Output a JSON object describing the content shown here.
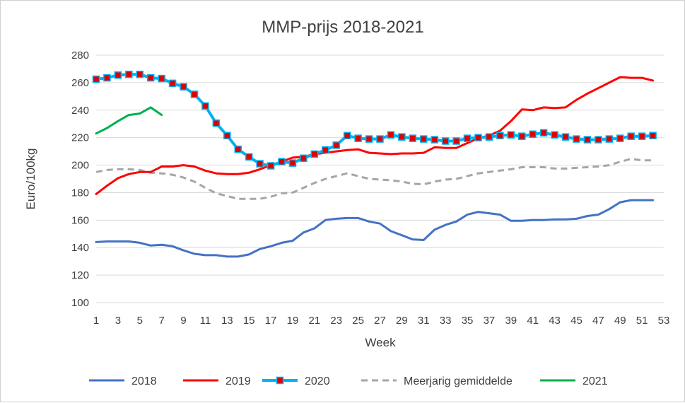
{
  "chart_data": {
    "type": "line",
    "title": "MMP-prijs 2018-2021",
    "xlabel": "Week",
    "ylabel": "Euro/100kg",
    "xlim": [
      1,
      53
    ],
    "ylim": [
      100,
      280
    ],
    "ystep": 20,
    "x_ticks": [
      1,
      3,
      5,
      7,
      9,
      11,
      13,
      15,
      17,
      19,
      21,
      23,
      25,
      27,
      29,
      31,
      33,
      35,
      37,
      39,
      41,
      43,
      45,
      47,
      49,
      51,
      53
    ],
    "y_ticks": [
      100,
      120,
      140,
      160,
      180,
      200,
      220,
      240,
      260,
      280
    ],
    "grid": true,
    "legend_position": "bottom",
    "series": [
      {
        "name": "2018",
        "color": "#4472c4",
        "style": "solid",
        "markers": false,
        "values": [
          144,
          144.5,
          144.5,
          144.5,
          143.5,
          141.5,
          142,
          141,
          138,
          135.5,
          134.5,
          134.5,
          133.5,
          133.5,
          135,
          139,
          141,
          143.5,
          145,
          151,
          154,
          160,
          161,
          161.5,
          161.5,
          159,
          157.5,
          152,
          149,
          146,
          145.5,
          153,
          156.5,
          159,
          164,
          166,
          165,
          164,
          159.5,
          159.5,
          160,
          160,
          160.5,
          160.5,
          161,
          163,
          164,
          168,
          173,
          174.5,
          174.5,
          174.5
        ]
      },
      {
        "name": "2019",
        "color": "#ff0000",
        "style": "solid",
        "markers": false,
        "values": [
          179,
          185,
          190.5,
          193.5,
          195,
          195,
          199,
          199,
          200,
          199,
          196,
          194,
          193.5,
          193.5,
          194.5,
          197,
          200,
          202.5,
          205.5,
          206,
          208,
          209,
          210,
          211,
          211.5,
          209,
          208.5,
          208,
          208.5,
          208.5,
          209,
          213,
          212.5,
          212.5,
          216,
          219.5,
          221.5,
          225,
          232,
          240.5,
          240,
          242,
          241.5,
          242,
          247.5,
          252,
          256,
          260,
          264,
          263.5,
          263.5,
          261.5
        ]
      },
      {
        "name": "2020",
        "color": "#00b0f0",
        "marker_color": "#e00000",
        "style": "solid",
        "markers": true,
        "values": [
          262.5,
          263.5,
          265.5,
          266,
          266,
          263.5,
          263,
          259.5,
          257,
          251.5,
          243,
          230.5,
          221.5,
          211.5,
          206,
          201,
          199.5,
          202.5,
          201.5,
          205,
          208,
          211,
          214.5,
          221.5,
          219.5,
          219,
          219,
          222,
          220.5,
          219.5,
          219,
          218.5,
          217.5,
          217.5,
          219.5,
          220,
          220.5,
          221.5,
          222,
          221,
          222.5,
          223.5,
          222,
          220.5,
          219,
          218.5,
          218.5,
          219,
          219.5,
          221,
          221,
          221.5
        ]
      },
      {
        "name": "Meerjarig gemiddelde",
        "color": "#a6a6a6",
        "style": "dashed",
        "markers": false,
        "values": [
          195,
          196.5,
          197,
          197,
          196.5,
          194.5,
          194,
          193,
          191,
          188,
          183.5,
          179.5,
          177.5,
          175.5,
          175.5,
          175.5,
          177,
          179.5,
          180,
          183.5,
          187,
          190,
          192,
          194,
          192,
          190,
          189.5,
          189,
          188,
          186.5,
          186,
          188,
          189.5,
          190,
          192,
          194,
          195,
          196,
          197,
          198.5,
          198.5,
          198.5,
          197.5,
          197.5,
          198,
          198.5,
          199,
          200,
          202.5,
          204.5,
          203.5,
          203.5
        ]
      },
      {
        "name": "2021",
        "color": "#00b050",
        "style": "solid",
        "markers": false,
        "values": [
          223,
          227,
          232,
          236.5,
          237.5,
          242,
          236.5
        ]
      }
    ]
  }
}
